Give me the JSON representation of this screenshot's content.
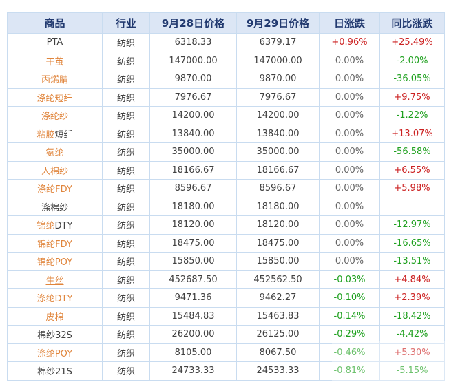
{
  "table": {
    "header_labels": [
      "商品",
      "行业",
      "9月28日价格",
      "9月29日价格",
      "日涨跌",
      "同比涨跌"
    ],
    "rows": [
      {
        "name_parts": [
          {
            "text": "PTA",
            "style": "plain"
          }
        ],
        "industry": "纺织",
        "price_0928": "6318.33",
        "price_0929": "6379.17",
        "daily_change": "+0.96%",
        "daily_change_color": "red",
        "yoy_change": "+25.49%",
        "yoy_change_color": "red"
      },
      {
        "name_parts": [
          {
            "text": "干茧",
            "style": "link"
          }
        ],
        "industry": "纺织",
        "price_0928": "147000.00",
        "price_0929": "147000.00",
        "daily_change": "0.00%",
        "daily_change_color": "gray",
        "yoy_change": "-2.00%",
        "yoy_change_color": "green"
      },
      {
        "name_parts": [
          {
            "text": "丙烯腈",
            "style": "link"
          }
        ],
        "industry": "纺织",
        "price_0928": "9870.00",
        "price_0929": "9870.00",
        "daily_change": "0.00%",
        "daily_change_color": "gray",
        "yoy_change": "-36.05%",
        "yoy_change_color": "green"
      },
      {
        "name_parts": [
          {
            "text": "涤纶短纤",
            "style": "link"
          }
        ],
        "industry": "纺织",
        "price_0928": "7976.67",
        "price_0929": "7976.67",
        "daily_change": "0.00%",
        "daily_change_color": "gray",
        "yoy_change": "+9.75%",
        "yoy_change_color": "red"
      },
      {
        "name_parts": [
          {
            "text": "涤纶纱",
            "style": "link"
          }
        ],
        "industry": "纺织",
        "price_0928": "14200.00",
        "price_0929": "14200.00",
        "daily_change": "0.00%",
        "daily_change_color": "gray",
        "yoy_change": "-1.22%",
        "yoy_change_color": "green"
      },
      {
        "name_parts": [
          {
            "text": "粘胶",
            "style": "link"
          },
          {
            "text": "短纤",
            "style": "plain"
          }
        ],
        "industry": "纺织",
        "price_0928": "13840.00",
        "price_0929": "13840.00",
        "daily_change": "0.00%",
        "daily_change_color": "gray",
        "yoy_change": "+13.07%",
        "yoy_change_color": "red"
      },
      {
        "name_parts": [
          {
            "text": "氨纶",
            "style": "link"
          }
        ],
        "industry": "纺织",
        "price_0928": "35000.00",
        "price_0929": "35000.00",
        "daily_change": "0.00%",
        "daily_change_color": "gray",
        "yoy_change": "-56.58%",
        "yoy_change_color": "green"
      },
      {
        "name_parts": [
          {
            "text": "人棉纱",
            "style": "link"
          }
        ],
        "industry": "纺织",
        "price_0928": "18166.67",
        "price_0929": "18166.67",
        "daily_change": "0.00%",
        "daily_change_color": "gray",
        "yoy_change": "+6.55%",
        "yoy_change_color": "red"
      },
      {
        "name_parts": [
          {
            "text": "涤纶FDY",
            "style": "link"
          }
        ],
        "industry": "纺织",
        "price_0928": "8596.67",
        "price_0929": "8596.67",
        "daily_change": "0.00%",
        "daily_change_color": "gray",
        "yoy_change": "+5.98%",
        "yoy_change_color": "red"
      },
      {
        "name_parts": [
          {
            "text": "涤棉纱",
            "style": "plain"
          }
        ],
        "industry": "纺织",
        "price_0928": "18180.00",
        "price_0929": "18180.00",
        "daily_change": "0.00%",
        "daily_change_color": "gray",
        "yoy_change": "",
        "yoy_change_color": "gray"
      },
      {
        "name_parts": [
          {
            "text": "锦纶",
            "style": "link"
          },
          {
            "text": "DTY",
            "style": "plain"
          }
        ],
        "industry": "纺织",
        "price_0928": "18120.00",
        "price_0929": "18120.00",
        "daily_change": "0.00%",
        "daily_change_color": "gray",
        "yoy_change": "-12.97%",
        "yoy_change_color": "green"
      },
      {
        "name_parts": [
          {
            "text": "锦纶FDY",
            "style": "link"
          }
        ],
        "industry": "纺织",
        "price_0928": "18475.00",
        "price_0929": "18475.00",
        "daily_change": "0.00%",
        "daily_change_color": "gray",
        "yoy_change": "-16.65%",
        "yoy_change_color": "green"
      },
      {
        "name_parts": [
          {
            "text": "锦纶POY",
            "style": "link"
          }
        ],
        "industry": "纺织",
        "price_0928": "15850.00",
        "price_0929": "15850.00",
        "daily_change": "0.00%",
        "daily_change_color": "gray",
        "yoy_change": "-13.51%",
        "yoy_change_color": "green"
      },
      {
        "name_parts": [
          {
            "text": "生丝",
            "style": "link_underline"
          }
        ],
        "industry": "纺织",
        "price_0928": "452687.50",
        "price_0929": "452562.50",
        "daily_change": "-0.03%",
        "daily_change_color": "green",
        "yoy_change": "+4.84%",
        "yoy_change_color": "red"
      },
      {
        "name_parts": [
          {
            "text": "涤纶DTY",
            "style": "link"
          }
        ],
        "industry": "纺织",
        "price_0928": "9471.36",
        "price_0929": "9462.27",
        "daily_change": "-0.10%",
        "daily_change_color": "green",
        "yoy_change": "+2.39%",
        "yoy_change_color": "red"
      },
      {
        "name_parts": [
          {
            "text": "皮棉",
            "style": "link"
          }
        ],
        "industry": "纺织",
        "price_0928": "15484.83",
        "price_0929": "15463.83",
        "daily_change": "-0.14%",
        "daily_change_color": "green",
        "yoy_change": "-18.42%",
        "yoy_change_color": "green"
      },
      {
        "name_parts": [
          {
            "text": "棉纱32S",
            "style": "plain"
          }
        ],
        "industry": "纺织",
        "price_0928": "26200.00",
        "price_0929": "26125.00",
        "daily_change": "-0.29%",
        "daily_change_color": "green",
        "yoy_change": "-4.42%",
        "yoy_change_color": "green"
      },
      {
        "name_parts": [
          {
            "text": "涤纶POY",
            "style": "link"
          }
        ],
        "industry": "纺织",
        "price_0928": "8105.00",
        "price_0929": "8067.50",
        "daily_change": "-0.46%",
        "daily_change_color": "green",
        "yoy_change": "+5.30%",
        "yoy_change_color": "red"
      },
      {
        "name_parts": [
          {
            "text": "棉纱21S",
            "style": "plain"
          }
        ],
        "industry": "纺织",
        "price_0928": "24733.33",
        "price_0929": "24533.33",
        "daily_change": "-0.81%",
        "daily_change_color": "green",
        "yoy_change": "-5.15%",
        "yoy_change_color": "green"
      }
    ]
  },
  "colors": {
    "up_red": "#cc2222",
    "down_green": "#1ea01e",
    "neutral_gray": "#666666",
    "link_orange": "#e0853c",
    "header_bg": "#dce6f5",
    "header_text": "#223a70",
    "border": "#c9dcf0"
  }
}
